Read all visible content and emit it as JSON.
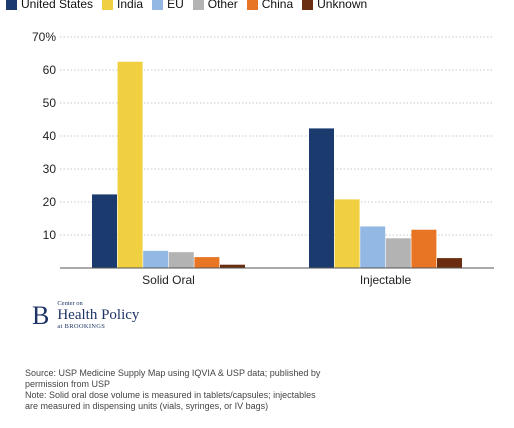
{
  "chart_data": {
    "type": "bar",
    "categories": [
      "Solid Oral",
      "Injectable"
    ],
    "series": [
      {
        "name": "United States",
        "color": "#1b3a6e",
        "values": [
          22.3,
          42.3
        ]
      },
      {
        "name": "India",
        "color": "#f0d040",
        "values": [
          62.5,
          20.8
        ]
      },
      {
        "name": "EU",
        "color": "#94b8e4",
        "values": [
          5.2,
          12.6
        ]
      },
      {
        "name": "Other",
        "color": "#b3b3b3",
        "values": [
          4.8,
          9.0
        ]
      },
      {
        "name": "China",
        "color": "#e87524",
        "values": [
          3.3,
          11.6
        ]
      },
      {
        "name": "Unknown",
        "color": "#6b2d10",
        "values": [
          1.0,
          3.0
        ]
      }
    ],
    "yticks": [
      "",
      "10",
      "20",
      "30",
      "40",
      "50",
      "60",
      "70%"
    ],
    "ylim": [
      0,
      70
    ],
    "grid": true,
    "legend": "top-left"
  },
  "logo": {
    "letter": "B",
    "small": "Center on",
    "main": "Health Policy",
    "sub": "at BROOKINGS"
  },
  "notes": {
    "source": "Source: USP Medicine Supply Map using IQVIA & USP data; published by permission from USP",
    "note": "Note: Solid oral dose volume is measured in tablets/capsules; injectables are measured in dispensing units (vials, syringes, or IV bags)"
  }
}
